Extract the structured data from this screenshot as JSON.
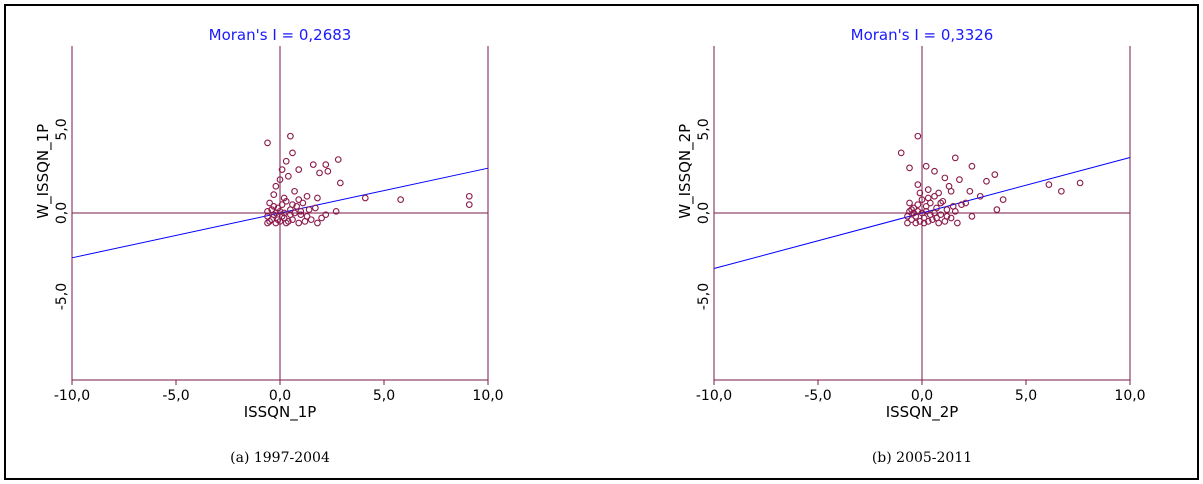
{
  "chart_data": [
    {
      "type": "scatter",
      "title": "Moran's I = 0,2683",
      "xlabel": "ISSQN_1P",
      "ylabel": "W_ISSQN_1P",
      "caption": "(a) 1997-2004",
      "xlim": [
        -10,
        10
      ],
      "ylim": [
        -10,
        10
      ],
      "x_ticks": [
        "-10,0",
        "-5,0",
        "0,0",
        "5,0",
        "10,0"
      ],
      "y_ticks": [
        "5,0",
        "0,0",
        "-5,0"
      ],
      "regression_slope": 0.2683,
      "colors": {
        "points": "#8b1a4a",
        "axes": "#7a1a4a",
        "regression": "#0000ff",
        "title": "#1a1aff"
      },
      "grid": false,
      "points": [
        [
          -0.6,
          4.2
        ],
        [
          0.5,
          4.6
        ],
        [
          0.3,
          3.1
        ],
        [
          0.6,
          3.6
        ],
        [
          0.1,
          2.6
        ],
        [
          0.9,
          2.6
        ],
        [
          1.6,
          2.9
        ],
        [
          2.2,
          2.9
        ],
        [
          2.8,
          3.2
        ],
        [
          1.9,
          2.4
        ],
        [
          2.3,
          2.5
        ],
        [
          0.0,
          2.0
        ],
        [
          -0.2,
          1.6
        ],
        [
          0.4,
          2.2
        ],
        [
          -0.3,
          1.1
        ],
        [
          0.2,
          0.9
        ],
        [
          0.7,
          1.3
        ],
        [
          1.3,
          1.0
        ],
        [
          1.8,
          0.9
        ],
        [
          2.9,
          1.8
        ],
        [
          4.1,
          0.9
        ],
        [
          5.8,
          0.8
        ],
        [
          9.1,
          1.0
        ],
        [
          9.1,
          0.5
        ],
        [
          2.7,
          0.1
        ],
        [
          2.2,
          -0.1
        ],
        [
          -0.5,
          0.6
        ],
        [
          -0.3,
          0.4
        ],
        [
          -0.1,
          0.3
        ],
        [
          0.1,
          0.5
        ],
        [
          0.3,
          0.7
        ],
        [
          0.5,
          0.2
        ],
        [
          0.8,
          0.4
        ],
        [
          1.1,
          0.6
        ],
        [
          1.4,
          0.2
        ],
        [
          1.7,
          0.3
        ],
        [
          -0.6,
          -0.2
        ],
        [
          -0.4,
          -0.4
        ],
        [
          -0.2,
          -0.6
        ],
        [
          0.0,
          -0.5
        ],
        [
          0.2,
          -0.3
        ],
        [
          0.4,
          -0.5
        ],
        [
          0.6,
          -0.4
        ],
        [
          0.9,
          -0.6
        ],
        [
          1.2,
          -0.5
        ],
        [
          1.5,
          -0.4
        ],
        [
          1.8,
          -0.6
        ],
        [
          2.0,
          -0.3
        ],
        [
          -0.6,
          0.1
        ],
        [
          -0.4,
          0.2
        ],
        [
          -0.2,
          0.0
        ],
        [
          0.0,
          0.1
        ],
        [
          0.2,
          0.0
        ],
        [
          0.5,
          -0.1
        ],
        [
          0.7,
          0.0
        ],
        [
          1.0,
          -0.1
        ],
        [
          1.3,
          -0.2
        ],
        [
          -0.5,
          -0.5
        ],
        [
          -0.3,
          -0.1
        ],
        [
          0.1,
          -0.2
        ],
        [
          0.3,
          -0.6
        ],
        [
          -0.1,
          -0.4
        ],
        [
          0.9,
          0.8
        ],
        [
          1.0,
          0.1
        ],
        [
          -0.6,
          -0.6
        ],
        [
          0.6,
          0.5
        ]
      ]
    },
    {
      "type": "scatter",
      "title": "Moran's I = 0,3326",
      "xlabel": "ISSQN_2P",
      "ylabel": "W_ISSQN_2P",
      "caption": "(b) 2005-2011",
      "xlim": [
        -10,
        10
      ],
      "ylim": [
        -10,
        10
      ],
      "x_ticks": [
        "-10,0",
        "-5,0",
        "0,0",
        "5,0",
        "10,0"
      ],
      "y_ticks": [
        "5,0",
        "0,0",
        "-5,0"
      ],
      "regression_slope": 0.3326,
      "colors": {
        "points": "#8b1a4a",
        "axes": "#7a1a4a",
        "regression": "#0000ff",
        "title": "#1a1aff"
      },
      "grid": false,
      "points": [
        [
          -1.0,
          3.6
        ],
        [
          -0.2,
          4.6
        ],
        [
          -0.6,
          2.7
        ],
        [
          0.2,
          2.8
        ],
        [
          0.6,
          2.5
        ],
        [
          1.6,
          3.3
        ],
        [
          2.4,
          2.8
        ],
        [
          1.1,
          2.1
        ],
        [
          1.8,
          2.0
        ],
        [
          1.3,
          1.6
        ],
        [
          3.1,
          1.9
        ],
        [
          3.5,
          2.3
        ],
        [
          -0.2,
          1.7
        ],
        [
          0.3,
          1.4
        ],
        [
          0.8,
          1.2
        ],
        [
          1.4,
          1.3
        ],
        [
          2.3,
          1.3
        ],
        [
          2.8,
          1.0
        ],
        [
          3.9,
          0.8
        ],
        [
          6.1,
          1.7
        ],
        [
          6.7,
          1.3
        ],
        [
          7.6,
          1.8
        ],
        [
          2.4,
          -0.2
        ],
        [
          3.6,
          0.2
        ],
        [
          1.9,
          0.5
        ],
        [
          -0.6,
          0.6
        ],
        [
          -0.4,
          0.3
        ],
        [
          -0.2,
          0.5
        ],
        [
          0.0,
          0.8
        ],
        [
          0.2,
          0.4
        ],
        [
          0.4,
          0.6
        ],
        [
          0.7,
          0.3
        ],
        [
          1.0,
          0.7
        ],
        [
          1.2,
          0.2
        ],
        [
          1.5,
          0.4
        ],
        [
          -0.7,
          -0.2
        ],
        [
          -0.5,
          -0.4
        ],
        [
          -0.3,
          -0.6
        ],
        [
          -0.1,
          -0.5
        ],
        [
          0.1,
          -0.3
        ],
        [
          0.3,
          -0.5
        ],
        [
          0.5,
          -0.4
        ],
        [
          0.8,
          -0.6
        ],
        [
          1.1,
          -0.5
        ],
        [
          1.4,
          -0.3
        ],
        [
          1.7,
          -0.6
        ],
        [
          -0.6,
          0.1
        ],
        [
          -0.4,
          0.0
        ],
        [
          -0.2,
          0.1
        ],
        [
          0.0,
          0.0
        ],
        [
          0.2,
          0.1
        ],
        [
          0.4,
          -0.1
        ],
        [
          0.6,
          0.0
        ],
        [
          0.9,
          -0.1
        ],
        [
          1.2,
          -0.2
        ],
        [
          -0.7,
          -0.6
        ],
        [
          -0.5,
          0.2
        ],
        [
          0.1,
          -0.6
        ],
        [
          0.3,
          0.9
        ],
        [
          0.6,
          1.0
        ],
        [
          -0.1,
          1.2
        ],
        [
          0.9,
          0.6
        ],
        [
          1.6,
          0.1
        ],
        [
          2.1,
          0.6
        ],
        [
          -0.3,
          -0.2
        ],
        [
          0.7,
          -0.3
        ]
      ]
    }
  ]
}
